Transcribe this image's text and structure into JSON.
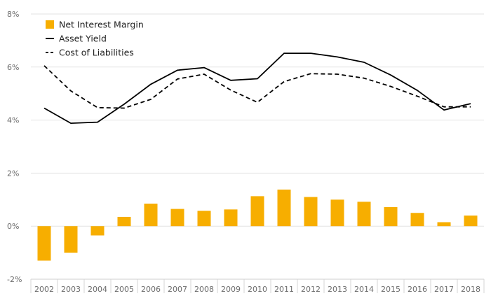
{
  "chart_data": {
    "type": "bar",
    "x": [
      "2002",
      "2003",
      "2004",
      "2005",
      "2006",
      "2007",
      "2008",
      "2009",
      "2010",
      "2011",
      "2012",
      "2013",
      "2014",
      "2015",
      "2016",
      "2017",
      "2018"
    ],
    "ylim": [
      -2,
      8
    ],
    "y_ticks": [
      "8%",
      "6%",
      "4%",
      "2%",
      "0%",
      "-2%"
    ],
    "y_tick_values": [
      8,
      6,
      4,
      2,
      0,
      -2
    ],
    "grid": true,
    "legend_position": "top-left",
    "series": [
      {
        "name": "Net Interest Margin",
        "type": "bar",
        "color": "#f7ae00",
        "values": [
          -1.3,
          -1.0,
          -0.35,
          0.35,
          0.85,
          0.65,
          0.58,
          0.63,
          1.13,
          1.38,
          1.1,
          1.0,
          0.92,
          0.72,
          0.5,
          0.15,
          0.4
        ]
      },
      {
        "name": "Asset Yield",
        "type": "line",
        "style": "solid",
        "color": "#000000",
        "values": [
          4.45,
          3.88,
          3.92,
          4.6,
          5.35,
          5.88,
          5.98,
          5.5,
          5.56,
          6.52,
          6.52,
          6.38,
          6.18,
          5.7,
          5.12,
          4.38,
          4.62
        ]
      },
      {
        "name": "Cost of Liabilities",
        "type": "line",
        "style": "dashed",
        "color": "#000000",
        "values": [
          6.05,
          5.1,
          4.47,
          4.45,
          4.78,
          5.55,
          5.73,
          5.13,
          4.67,
          5.45,
          5.75,
          5.73,
          5.58,
          5.27,
          4.9,
          4.5,
          4.5
        ]
      }
    ]
  }
}
